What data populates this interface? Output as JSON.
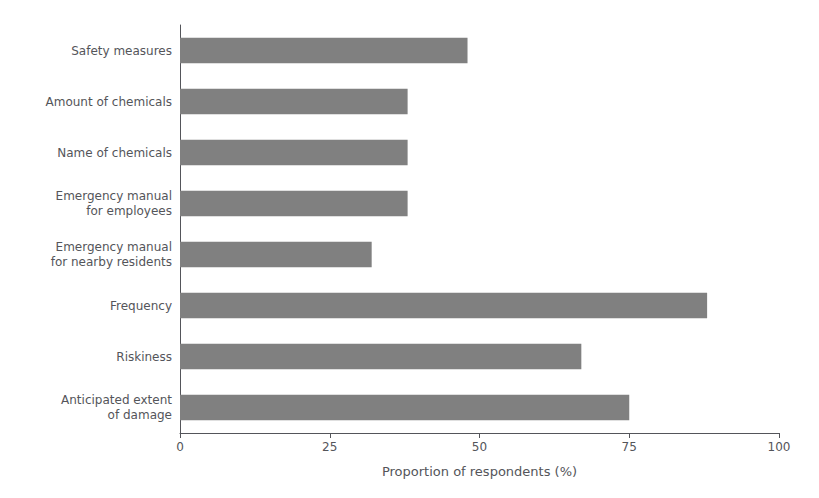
{
  "chart_data": {
    "type": "bar",
    "orientation": "horizontal",
    "categories": [
      "Anticipated extent\nof damage",
      "Riskiness",
      "Frequency",
      "Emergency manual\nfor nearby residents",
      "Emergency manual\nfor employees",
      "Name of chemicals",
      "Amount of chemicals",
      "Safety measures"
    ],
    "values": [
      75,
      67,
      88,
      32,
      38,
      38,
      38,
      48
    ],
    "color": "#808080",
    "xlabel": "Proportion of respondents (%)",
    "xlim": [
      0,
      100
    ],
    "xticks": [
      0,
      25,
      50,
      75,
      100
    ],
    "grid": false
  }
}
